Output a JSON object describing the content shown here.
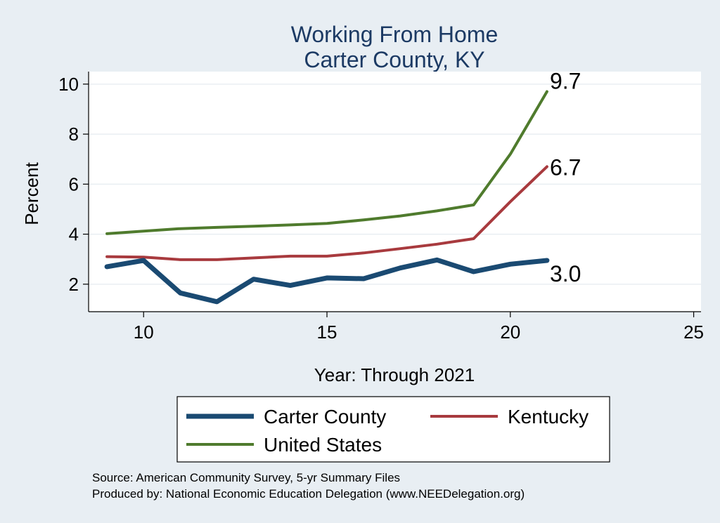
{
  "chart_data": {
    "type": "line",
    "title": "Working From Home",
    "subtitle": "Carter County, KY",
    "xlabel": "Year: Through 2021",
    "ylabel": "Percent",
    "xlim": [
      8.5,
      25.2
    ],
    "ylim": [
      0.9,
      10.5
    ],
    "x_ticks": [
      10,
      15,
      20,
      25
    ],
    "y_ticks": [
      2,
      4,
      6,
      8,
      10
    ],
    "grid": true,
    "legend_position": "bottom",
    "x": [
      9,
      10,
      11,
      12,
      13,
      14,
      15,
      16,
      17,
      18,
      19,
      20,
      21
    ],
    "series": [
      {
        "name": "Carter County",
        "color": "#1a4a72",
        "line_width": "thick",
        "values": [
          2.7,
          2.95,
          1.65,
          1.3,
          2.2,
          1.95,
          2.25,
          2.22,
          2.65,
          2.97,
          2.5,
          2.8,
          2.95
        ],
        "end_label": "3.0"
      },
      {
        "name": "Kentucky",
        "color": "#a83a3e",
        "line_width": "normal",
        "values": [
          3.1,
          3.08,
          2.98,
          2.98,
          3.05,
          3.12,
          3.12,
          3.25,
          3.42,
          3.6,
          3.82,
          5.3,
          6.7
        ],
        "end_label": "6.7"
      },
      {
        "name": "United States",
        "color": "#4f7b2d",
        "line_width": "normal",
        "values": [
          4.02,
          4.12,
          4.22,
          4.27,
          4.32,
          4.37,
          4.43,
          4.57,
          4.73,
          4.93,
          5.17,
          7.2,
          9.7
        ],
        "end_label": "9.7"
      }
    ],
    "source_note": "Source: American Community Survey, 5-yr Summary Files",
    "producer_note": "Produced by: National Economic Education Delegation (www.NEEDelegation.org)"
  }
}
